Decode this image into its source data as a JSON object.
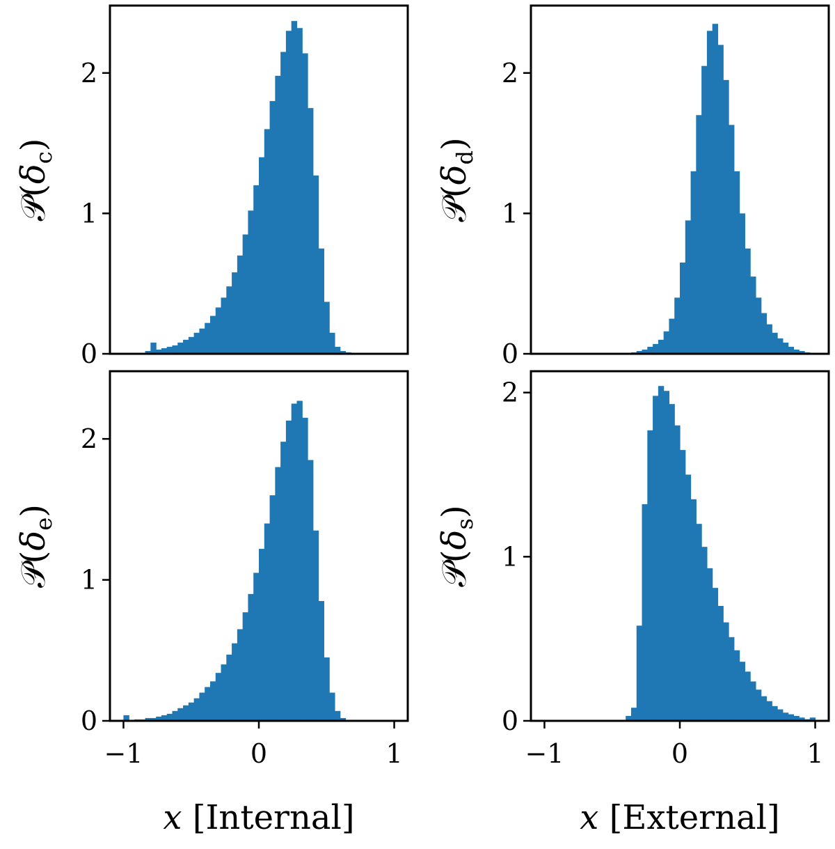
{
  "figure": {
    "bar_color": "#1f77b4"
  },
  "chart_data": [
    {
      "id": "c",
      "type": "bar",
      "ylabel_symbol": "𝒫",
      "ylabel_var": "δ",
      "ylabel_sub": "c",
      "xlabel_var": "",
      "xlabel_text": "",
      "xlim": [
        -1.1,
        1.1
      ],
      "ylim": [
        0,
        2.48
      ],
      "xticks": [],
      "xtick_labels": [],
      "yticks": [
        0,
        1,
        2
      ],
      "ytick_labels": [
        "0",
        "1",
        "2"
      ],
      "bin_start": -1.0,
      "bin_width": 0.04,
      "values": [
        0,
        0,
        0,
        0,
        0.02,
        0.08,
        0.03,
        0.04,
        0.05,
        0.06,
        0.08,
        0.1,
        0.12,
        0.15,
        0.18,
        0.22,
        0.27,
        0.33,
        0.4,
        0.48,
        0.58,
        0.7,
        0.85,
        1.02,
        1.2,
        1.4,
        1.6,
        1.8,
        1.98,
        2.15,
        2.3,
        2.37,
        2.32,
        2.14,
        1.75,
        1.27,
        0.75,
        0.37,
        0.15,
        0.05,
        0.02,
        0.01,
        0,
        0,
        0,
        0,
        0,
        0,
        0,
        0
      ]
    },
    {
      "id": "d",
      "type": "bar",
      "ylabel_symbol": "𝒫",
      "ylabel_var": "δ",
      "ylabel_sub": "d",
      "xlabel_var": "",
      "xlabel_text": "",
      "xlim": [
        -1.1,
        1.1
      ],
      "ylim": [
        0,
        2.48
      ],
      "xticks": [],
      "xtick_labels": [],
      "yticks": [
        0,
        1,
        2
      ],
      "ytick_labels": [
        "0",
        "1",
        "2"
      ],
      "bin_start": -1.0,
      "bin_width": 0.04,
      "values": [
        0,
        0,
        0,
        0,
        0,
        0,
        0,
        0,
        0,
        0,
        0,
        0,
        0,
        0,
        0,
        0,
        0.01,
        0.02,
        0.03,
        0.05,
        0.07,
        0.1,
        0.16,
        0.25,
        0.4,
        0.65,
        0.95,
        1.3,
        1.7,
        2.05,
        2.3,
        2.35,
        2.2,
        1.95,
        1.63,
        1.3,
        1.0,
        0.75,
        0.55,
        0.4,
        0.29,
        0.21,
        0.15,
        0.11,
        0.08,
        0.05,
        0.03,
        0.02,
        0.01,
        0
      ]
    },
    {
      "id": "e",
      "type": "bar",
      "ylabel_symbol": "𝒫",
      "ylabel_var": "δ",
      "ylabel_sub": "e",
      "xlabel_var": "x",
      "xlabel_text": "[Internal]",
      "xlim": [
        -1.1,
        1.1
      ],
      "ylim": [
        0,
        2.48
      ],
      "xticks": [
        -1,
        0,
        1
      ],
      "xtick_labels": [
        "−1",
        "0",
        "1"
      ],
      "yticks": [
        0,
        1,
        2
      ],
      "ytick_labels": [
        "0",
        "1",
        "2"
      ],
      "bin_start": -1.0,
      "bin_width": 0.04,
      "values": [
        0.04,
        0,
        0.01,
        0.01,
        0.02,
        0.02,
        0.03,
        0.04,
        0.05,
        0.07,
        0.09,
        0.11,
        0.13,
        0.16,
        0.2,
        0.24,
        0.28,
        0.34,
        0.4,
        0.47,
        0.55,
        0.65,
        0.77,
        0.9,
        1.05,
        1.22,
        1.4,
        1.6,
        1.8,
        1.98,
        2.13,
        2.25,
        2.27,
        2.15,
        1.85,
        1.35,
        0.85,
        0.45,
        0.2,
        0.07,
        0.02,
        0,
        0,
        0,
        0,
        0,
        0,
        0,
        0,
        0
      ]
    },
    {
      "id": "s",
      "type": "bar",
      "ylabel_symbol": "𝒫",
      "ylabel_var": "δ",
      "ylabel_sub": "s",
      "xlabel_var": "x",
      "xlabel_text": "[External]",
      "xlim": [
        -1.1,
        1.1
      ],
      "ylim": [
        0,
        2.13
      ],
      "xticks": [
        -1,
        0,
        1
      ],
      "xtick_labels": [
        "−1",
        "0",
        "1"
      ],
      "yticks": [
        0,
        1,
        2
      ],
      "ytick_labels": [
        "0",
        "1",
        "2"
      ],
      "bin_start": -1.0,
      "bin_width": 0.04,
      "values": [
        0,
        0,
        0,
        0,
        0,
        0,
        0,
        0,
        0,
        0,
        0,
        0,
        0,
        0,
        0,
        0.03,
        0.08,
        0.58,
        1.32,
        1.77,
        1.98,
        2.04,
        2.01,
        1.93,
        1.8,
        1.65,
        1.5,
        1.35,
        1.2,
        1.06,
        0.93,
        0.81,
        0.7,
        0.6,
        0.51,
        0.43,
        0.36,
        0.3,
        0.24,
        0.19,
        0.15,
        0.12,
        0.09,
        0.07,
        0.05,
        0.04,
        0.03,
        0.02,
        0.01,
        0.02
      ]
    }
  ]
}
